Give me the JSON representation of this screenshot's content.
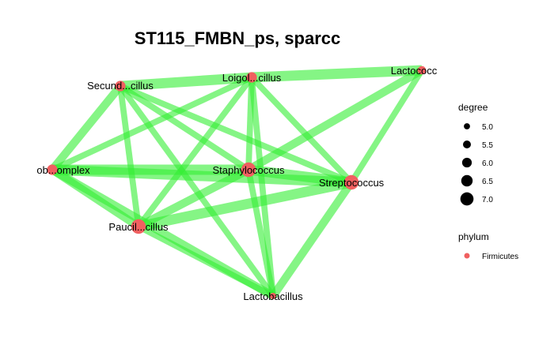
{
  "title": "ST115_FMBN_ps, sparcc",
  "network": {
    "edge_color": "#33ee33",
    "node_color": "#f06060",
    "nodes": [
      {
        "id": "secund",
        "label": "Secund...cillus",
        "degree": 6.0
      },
      {
        "id": "loigol",
        "label": "Loigol...cillus",
        "degree": 6.0
      },
      {
        "id": "lactococ",
        "label": "Lactococc",
        "degree": 5.5
      },
      {
        "id": "obcomplex",
        "label": "ob...omplex",
        "degree": 6.0
      },
      {
        "id": "staph",
        "label": "Staphylococcus",
        "degree": 7.0
      },
      {
        "id": "strep",
        "label": "Streptococcus",
        "degree": 7.0
      },
      {
        "id": "paucil",
        "label": "Paucil...cillus",
        "degree": 7.0
      },
      {
        "id": "lactobac",
        "label": "Lactobacillus",
        "degree": 5.0
      }
    ],
    "edges": [
      {
        "source": "secund",
        "target": "loigol",
        "weight": 4
      },
      {
        "source": "loigol",
        "target": "lactococ",
        "weight": 4
      },
      {
        "source": "secund",
        "target": "obcomplex",
        "weight": 3
      },
      {
        "source": "secund",
        "target": "staph",
        "weight": 2
      },
      {
        "source": "secund",
        "target": "strep",
        "weight": 2
      },
      {
        "source": "secund",
        "target": "paucil",
        "weight": 2
      },
      {
        "source": "secund",
        "target": "lactobac",
        "weight": 2
      },
      {
        "source": "loigol",
        "target": "obcomplex",
        "weight": 2
      },
      {
        "source": "loigol",
        "target": "staph",
        "weight": 2
      },
      {
        "source": "loigol",
        "target": "strep",
        "weight": 2
      },
      {
        "source": "loigol",
        "target": "paucil",
        "weight": 2
      },
      {
        "source": "loigol",
        "target": "lactobac",
        "weight": 2
      },
      {
        "source": "lactococ",
        "target": "staph",
        "weight": 3
      },
      {
        "source": "lactococ",
        "target": "strep",
        "weight": 2
      },
      {
        "source": "obcomplex",
        "target": "staph",
        "weight": 4
      },
      {
        "source": "obcomplex",
        "target": "strep",
        "weight": 4
      },
      {
        "source": "obcomplex",
        "target": "paucil",
        "weight": 3
      },
      {
        "source": "obcomplex",
        "target": "lactobac",
        "weight": 3
      },
      {
        "source": "staph",
        "target": "strep",
        "weight": 4
      },
      {
        "source": "staph",
        "target": "paucil",
        "weight": 3
      },
      {
        "source": "staph",
        "target": "lactobac",
        "weight": 2
      },
      {
        "source": "strep",
        "target": "paucil",
        "weight": 4
      },
      {
        "source": "strep",
        "target": "lactobac",
        "weight": 3
      },
      {
        "source": "paucil",
        "target": "lactobac",
        "weight": 2
      }
    ]
  },
  "legend": {
    "degree_title": "degree",
    "degree_items": [
      {
        "label": "5.0",
        "value": 5.0
      },
      {
        "label": "5.5",
        "value": 5.5
      },
      {
        "label": "6.0",
        "value": 6.0
      },
      {
        "label": "6.5",
        "value": 6.5
      },
      {
        "label": "7.0",
        "value": 7.0
      }
    ],
    "phylum_title": "phylum",
    "phylum_items": [
      {
        "label": "Firmicutes",
        "color": "#f06060"
      }
    ]
  }
}
